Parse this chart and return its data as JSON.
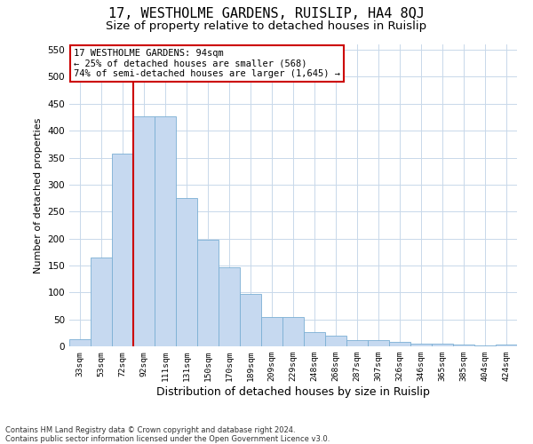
{
  "title": "17, WESTHOLME GARDENS, RUISLIP, HA4 8QJ",
  "subtitle": "Size of property relative to detached houses in Ruislip",
  "xlabel": "Distribution of detached houses by size in Ruislip",
  "ylabel": "Number of detached properties",
  "bin_labels": [
    "33sqm",
    "53sqm",
    "72sqm",
    "92sqm",
    "111sqm",
    "131sqm",
    "150sqm",
    "170sqm",
    "189sqm",
    "209sqm",
    "229sqm",
    "248sqm",
    "268sqm",
    "287sqm",
    "307sqm",
    "326sqm",
    "346sqm",
    "365sqm",
    "385sqm",
    "404sqm",
    "424sqm"
  ],
  "bar_heights": [
    13,
    165,
    358,
    427,
    427,
    275,
    197,
    147,
    97,
    55,
    55,
    27,
    20,
    12,
    12,
    8,
    5,
    5,
    3,
    2,
    3
  ],
  "bar_color": "#c6d9f0",
  "bar_edge_color": "#7bafd4",
  "annotation_line1": "17 WESTHOLME GARDENS: 94sqm",
  "annotation_line2": "← 25% of detached houses are smaller (568)",
  "annotation_line3": "74% of semi-detached houses are larger (1,645) →",
  "annotation_box_color": "#ffffff",
  "annotation_box_edge_color": "#cc0000",
  "vline_color": "#cc0000",
  "vline_x": 2.5,
  "ylim": [
    0,
    560
  ],
  "yticks": [
    0,
    50,
    100,
    150,
    200,
    250,
    300,
    350,
    400,
    450,
    500,
    550
  ],
  "background_color": "#ffffff",
  "grid_color": "#c8d8ea",
  "footer_text": "Contains HM Land Registry data © Crown copyright and database right 2024.\nContains public sector information licensed under the Open Government Licence v3.0.",
  "title_fontsize": 11,
  "subtitle_fontsize": 9.5,
  "xlabel_fontsize": 9,
  "ylabel_fontsize": 8,
  "annot_fontsize": 7.5,
  "footer_fontsize": 6
}
